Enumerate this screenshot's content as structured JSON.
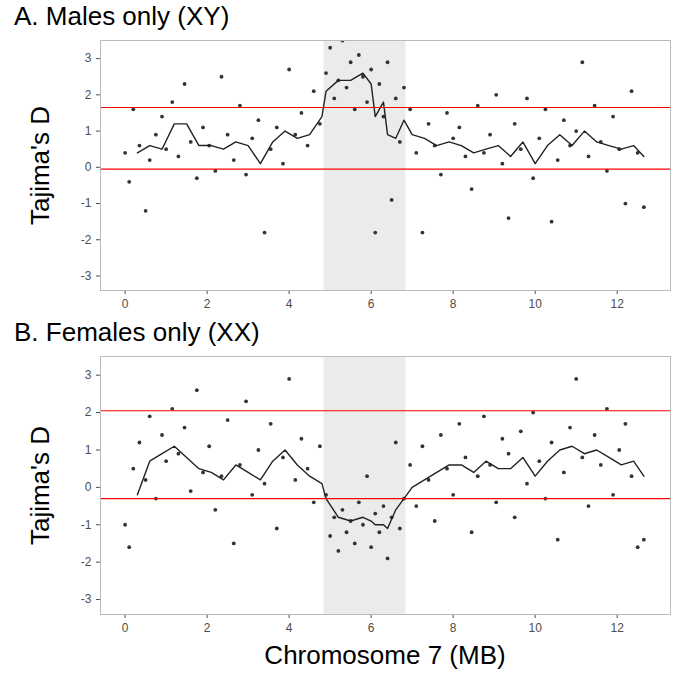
{
  "chart_data": [
    {
      "type": "scatter",
      "title": "A. Males only (XY)",
      "y_label": "Tajima's D",
      "xlim": [
        -0.6,
        13.3
      ],
      "ylim": [
        -3.4,
        3.5
      ],
      "xticks": [
        0,
        2,
        4,
        6,
        8,
        10,
        12
      ],
      "yticks": [
        -3,
        -2,
        -1,
        0,
        1,
        2,
        3
      ],
      "grid": false,
      "shaded_region": {
        "x": [
          4.85,
          6.85
        ],
        "color": "#ebebeb"
      },
      "hlines": {
        "values": [
          1.65,
          -0.05
        ],
        "color": "#ff0000"
      },
      "series": [
        {
          "type": "scatter",
          "color": "#333333",
          "x": [
            0.0,
            0.1,
            0.2,
            0.35,
            0.5,
            0.6,
            0.75,
            0.9,
            1.0,
            1.15,
            1.3,
            1.45,
            1.6,
            1.75,
            1.9,
            2.05,
            2.2,
            2.35,
            2.5,
            2.65,
            2.8,
            2.95,
            3.1,
            3.25,
            3.4,
            3.55,
            3.7,
            3.85,
            4.0,
            4.15,
            4.3,
            4.45,
            4.6,
            4.75,
            4.9,
            5.0,
            5.1,
            5.2,
            5.3,
            5.4,
            5.5,
            5.6,
            5.7,
            5.8,
            5.9,
            6.0,
            6.1,
            6.2,
            6.3,
            6.4,
            6.5,
            6.6,
            6.7,
            6.8,
            6.95,
            7.1,
            7.25,
            7.4,
            7.55,
            7.7,
            7.85,
            8.0,
            8.15,
            8.3,
            8.45,
            8.6,
            8.75,
            8.9,
            9.05,
            9.2,
            9.35,
            9.5,
            9.65,
            9.8,
            9.95,
            10.1,
            10.25,
            10.4,
            10.55,
            10.7,
            10.85,
            11.0,
            11.15,
            11.3,
            11.45,
            11.6,
            11.75,
            11.9,
            12.05,
            12.2,
            12.35,
            12.5,
            12.65
          ],
          "values": [
            0.4,
            -0.4,
            1.6,
            0.6,
            -1.2,
            0.2,
            0.9,
            1.4,
            0.5,
            1.8,
            0.3,
            2.3,
            0.7,
            -0.3,
            1.1,
            0.6,
            -0.1,
            2.5,
            0.9,
            0.2,
            1.7,
            -0.2,
            0.8,
            1.3,
            -1.8,
            0.5,
            1.1,
            0.1,
            2.7,
            0.9,
            1.5,
            0.6,
            2.1,
            1.2,
            2.6,
            3.3,
            1.9,
            2.4,
            3.5,
            2.2,
            2.9,
            1.6,
            3.1,
            2.5,
            1.8,
            2.7,
            -1.8,
            2.3,
            1.4,
            2.9,
            -0.9,
            1.9,
            0.7,
            2.2,
            1.6,
            0.4,
            -1.8,
            1.2,
            0.6,
            -0.2,
            1.5,
            0.8,
            1.1,
            0.3,
            -0.6,
            1.7,
            0.4,
            0.9,
            2.0,
            0.1,
            -1.4,
            1.2,
            0.5,
            1.9,
            -0.3,
            0.8,
            1.6,
            -1.5,
            0.2,
            1.3,
            0.6,
            1.0,
            2.9,
            0.3,
            1.7,
            0.7,
            -0.1,
            1.4,
            0.5,
            -1.0,
            2.1,
            0.4,
            -1.1
          ]
        },
        {
          "type": "line",
          "color": "#222222",
          "x": [
            0.3,
            0.6,
            0.9,
            1.2,
            1.5,
            1.8,
            2.1,
            2.4,
            2.7,
            3.0,
            3.3,
            3.6,
            3.9,
            4.2,
            4.5,
            4.8,
            4.9,
            5.2,
            5.5,
            5.8,
            6.0,
            6.1,
            6.3,
            6.4,
            6.6,
            6.8,
            7.0,
            7.3,
            7.6,
            7.9,
            8.2,
            8.5,
            8.8,
            9.1,
            9.4,
            9.7,
            10.0,
            10.3,
            10.6,
            10.9,
            11.2,
            11.5,
            11.8,
            12.1,
            12.4,
            12.65
          ],
          "values": [
            0.4,
            0.6,
            0.5,
            1.2,
            1.2,
            0.6,
            0.6,
            0.5,
            0.7,
            0.6,
            0.1,
            0.7,
            1.0,
            0.8,
            0.9,
            1.4,
            2.1,
            2.4,
            2.4,
            2.6,
            2.3,
            1.4,
            1.8,
            0.9,
            0.8,
            1.3,
            0.9,
            0.8,
            0.6,
            0.7,
            0.6,
            0.4,
            0.5,
            0.6,
            0.3,
            0.7,
            0.1,
            0.6,
            0.9,
            0.6,
            1.0,
            0.7,
            0.6,
            0.5,
            0.6,
            0.3
          ]
        }
      ]
    },
    {
      "type": "scatter",
      "title": "B. Females only (XX)",
      "y_label": "Tajima's D",
      "x_label": "Chromosome 7 (MB)",
      "xlim": [
        -0.6,
        13.3
      ],
      "ylim": [
        -3.4,
        3.5
      ],
      "xticks": [
        0,
        2,
        4,
        6,
        8,
        10,
        12
      ],
      "yticks": [
        -3,
        -2,
        -1,
        0,
        1,
        2,
        3
      ],
      "grid": false,
      "shaded_region": {
        "x": [
          4.85,
          6.85
        ],
        "color": "#ebebeb"
      },
      "hlines": {
        "values": [
          2.05,
          -0.3
        ],
        "color": "#ff0000"
      },
      "series": [
        {
          "type": "scatter",
          "color": "#333333",
          "x": [
            0.0,
            0.1,
            0.2,
            0.35,
            0.5,
            0.6,
            0.75,
            0.9,
            1.0,
            1.15,
            1.3,
            1.45,
            1.6,
            1.75,
            1.9,
            2.05,
            2.2,
            2.35,
            2.5,
            2.65,
            2.8,
            2.95,
            3.1,
            3.25,
            3.4,
            3.55,
            3.7,
            3.85,
            4.0,
            4.15,
            4.3,
            4.45,
            4.6,
            4.75,
            4.9,
            5.0,
            5.1,
            5.2,
            5.3,
            5.4,
            5.5,
            5.6,
            5.7,
            5.8,
            5.9,
            6.0,
            6.1,
            6.2,
            6.3,
            6.4,
            6.5,
            6.6,
            6.7,
            6.8,
            6.95,
            7.1,
            7.25,
            7.4,
            7.55,
            7.7,
            7.85,
            8.0,
            8.15,
            8.3,
            8.45,
            8.6,
            8.75,
            8.9,
            9.05,
            9.2,
            9.35,
            9.5,
            9.65,
            9.8,
            9.95,
            10.1,
            10.25,
            10.4,
            10.55,
            10.7,
            10.85,
            11.0,
            11.15,
            11.3,
            11.45,
            11.6,
            11.75,
            11.9,
            12.05,
            12.2,
            12.35,
            12.5,
            12.65
          ],
          "values": [
            -1.0,
            -1.6,
            0.5,
            1.2,
            0.2,
            1.9,
            -0.3,
            1.4,
            0.7,
            2.1,
            0.9,
            1.6,
            -0.1,
            2.6,
            0.4,
            1.1,
            -0.6,
            0.3,
            1.8,
            -1.5,
            0.6,
            2.3,
            -0.2,
            1.0,
            0.1,
            1.7,
            -1.1,
            0.8,
            2.9,
            0.2,
            1.3,
            0.5,
            -0.4,
            1.1,
            -0.2,
            -1.3,
            -0.8,
            -1.7,
            -0.6,
            -1.2,
            -0.9,
            -1.5,
            -0.4,
            -1.0,
            0.3,
            -1.6,
            -0.7,
            -1.2,
            -0.5,
            -1.9,
            -0.8,
            1.2,
            -1.1,
            -0.3,
            0.6,
            -0.5,
            1.1,
            0.2,
            -0.9,
            1.4,
            0.5,
            -0.2,
            1.7,
            0.8,
            -1.2,
            0.3,
            1.9,
            0.6,
            -0.4,
            1.3,
            0.9,
            -0.8,
            1.5,
            0.1,
            2.0,
            0.7,
            -0.3,
            1.2,
            -1.4,
            0.4,
            1.6,
            2.9,
            0.8,
            -0.5,
            1.4,
            0.6,
            2.1,
            -0.2,
            1.0,
            1.7,
            0.3,
            -1.6,
            -1.4
          ]
        },
        {
          "type": "line",
          "color": "#222222",
          "x": [
            0.3,
            0.6,
            0.9,
            1.2,
            1.5,
            1.8,
            2.1,
            2.4,
            2.7,
            3.0,
            3.3,
            3.6,
            3.9,
            4.2,
            4.5,
            4.8,
            4.9,
            5.2,
            5.5,
            5.8,
            6.0,
            6.1,
            6.3,
            6.4,
            6.6,
            6.8,
            7.0,
            7.3,
            7.6,
            7.9,
            8.2,
            8.5,
            8.8,
            9.1,
            9.4,
            9.7,
            10.0,
            10.3,
            10.6,
            10.9,
            11.2,
            11.5,
            11.8,
            12.1,
            12.4,
            12.65
          ],
          "values": [
            -0.2,
            0.7,
            0.9,
            1.1,
            0.8,
            0.5,
            0.4,
            0.2,
            0.6,
            0.4,
            0.2,
            0.7,
            1.0,
            0.6,
            0.3,
            0.1,
            -0.3,
            -0.8,
            -0.9,
            -0.8,
            -0.9,
            -1.0,
            -1.0,
            -1.1,
            -0.6,
            -0.3,
            0.0,
            0.2,
            0.4,
            0.6,
            0.6,
            0.4,
            0.7,
            0.5,
            0.5,
            0.8,
            0.3,
            0.7,
            1.0,
            1.1,
            0.9,
            1.0,
            0.8,
            0.6,
            0.7,
            0.3
          ]
        }
      ]
    }
  ]
}
